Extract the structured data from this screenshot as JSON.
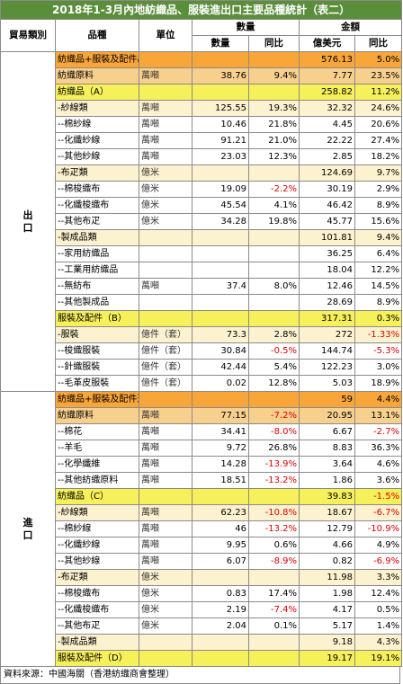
{
  "title": "2018年1-3月內地紡織品、服裝進出口主要品種統計（表二）",
  "header": {
    "trade_type": "貿易類別",
    "item": "品種",
    "unit": "單位",
    "quantity": "數量",
    "amount": "金額",
    "qty_value": "數量",
    "yoy": "同比",
    "value_usd": "億美元",
    "yoy2": "同比"
  },
  "export_label": "出口",
  "import_label": "進口",
  "export_rows": [
    {
      "name": "紡織品+服裝及配件出口（A+B）",
      "unit": "",
      "qty": "",
      "qty_yoy": "",
      "val": "576.13",
      "val_yoy": "5.0%",
      "style": "r-total"
    },
    {
      "name": "紡織原料",
      "unit": "萬噸",
      "qty": "38.76",
      "qty_yoy": "9.4%",
      "val": "7.77",
      "val_yoy": "23.5%",
      "style": "r-fiber"
    },
    {
      "name": "紡織品（A）",
      "unit": "",
      "qty": "",
      "qty_yoy": "",
      "val": "258.82",
      "val_yoy": "11.2%",
      "style": "r-text"
    },
    {
      "name": "-紗線類",
      "unit": "萬噸",
      "qty": "125.55",
      "qty_yoy": "19.3%",
      "val": "32.32",
      "val_yoy": "24.6%",
      "style": "r-sub"
    },
    {
      "name": "--棉紗線",
      "unit": "萬噸",
      "qty": "10.46",
      "qty_yoy": "21.8%",
      "val": "4.45",
      "val_yoy": "20.6%",
      "style": "r-none"
    },
    {
      "name": "--化纖紗線",
      "unit": "萬噸",
      "qty": "91.21",
      "qty_yoy": "21.0%",
      "val": "22.22",
      "val_yoy": "27.4%",
      "style": "r-none"
    },
    {
      "name": "--其他紗線",
      "unit": "萬噸",
      "qty": "23.03",
      "qty_yoy": "12.3%",
      "val": "2.85",
      "val_yoy": "18.2%",
      "style": "r-none"
    },
    {
      "name": "-布疋類",
      "unit": "億米",
      "qty": "",
      "qty_yoy": "",
      "val": "124.69",
      "val_yoy": "9.7%",
      "style": "r-sub"
    },
    {
      "name": "--棉梭織布",
      "unit": "億米",
      "qty": "19.09",
      "qty_yoy": "-2.2%",
      "val": "30.19",
      "val_yoy": "2.9%",
      "style": "r-none"
    },
    {
      "name": "--化纖梭織布",
      "unit": "億米",
      "qty": "45.54",
      "qty_yoy": "4.1%",
      "val": "46.42",
      "val_yoy": "8.9%",
      "style": "r-none"
    },
    {
      "name": "--其他布疋",
      "unit": "億米",
      "qty": "34.28",
      "qty_yoy": "19.8%",
      "val": "45.77",
      "val_yoy": "15.6%",
      "style": "r-none"
    },
    {
      "name": "-製成品類",
      "unit": "",
      "qty": "",
      "qty_yoy": "",
      "val": "101.81",
      "val_yoy": "9.4%",
      "style": "r-sub"
    },
    {
      "name": "--家用紡織品",
      "unit": "",
      "qty": "",
      "qty_yoy": "",
      "val": "36.25",
      "val_yoy": "6.4%",
      "style": "r-none"
    },
    {
      "name": "--工業用紡織品",
      "unit": "",
      "qty": "",
      "qty_yoy": "",
      "val": "18.04",
      "val_yoy": "12.2%",
      "style": "r-none"
    },
    {
      "name": "--無紡布",
      "unit": "萬噸",
      "qty": "37.4",
      "qty_yoy": "8.0%",
      "val": "12.46",
      "val_yoy": "14.5%",
      "style": "r-none"
    },
    {
      "name": "--其他製成品",
      "unit": "",
      "qty": "",
      "qty_yoy": "",
      "val": "28.69",
      "val_yoy": "8.9%",
      "style": "r-none"
    },
    {
      "name": "服裝及配件（B）",
      "unit": "",
      "qty": "",
      "qty_yoy": "",
      "val": "317.31",
      "val_yoy": "0.3%",
      "style": "r-text"
    },
    {
      "name": "-服裝",
      "unit": "億件（套）",
      "qty": "73.3",
      "qty_yoy": "2.8%",
      "val": "272",
      "val_yoy": "-1.33%",
      "style": "r-sub"
    },
    {
      "name": "--梭織服裝",
      "unit": "億件（套）",
      "qty": "30.84",
      "qty_yoy": "-0.5%",
      "val": "144.74",
      "val_yoy": "-5.3%",
      "style": "r-none"
    },
    {
      "name": "--針織服裝",
      "unit": "億件（套）",
      "qty": "42.44",
      "qty_yoy": "5.4%",
      "val": "122.23",
      "val_yoy": "3.0%",
      "style": "r-none"
    },
    {
      "name": "--毛革皮服裝",
      "unit": "億件（套）",
      "qty": "0.02",
      "qty_yoy": "12.8%",
      "val": "5.03",
      "val_yoy": "18.9%",
      "style": "r-none"
    }
  ],
  "import_rows": [
    {
      "name": "紡織品+服裝及配件進口（C+D）",
      "unit": "",
      "qty": "",
      "qty_yoy": "",
      "val": "59",
      "val_yoy": "4.4%",
      "style": "r-total"
    },
    {
      "name": "紡織原料",
      "unit": "萬噸",
      "qty": "77.15",
      "qty_yoy": "-7.2%",
      "val": "20.95",
      "val_yoy": "13.1%",
      "style": "r-fiber"
    },
    {
      "name": "--棉花",
      "unit": "萬噸",
      "qty": "34.41",
      "qty_yoy": "-8.0%",
      "val": "6.67",
      "val_yoy": "-2.7%",
      "style": "r-none"
    },
    {
      "name": "--羊毛",
      "unit": "萬噸",
      "qty": "9.72",
      "qty_yoy": "26.8%",
      "val": "8.83",
      "val_yoy": "36.3%",
      "style": "r-none"
    },
    {
      "name": "--化學纖維",
      "unit": "萬噸",
      "qty": "14.28",
      "qty_yoy": "-13.9%",
      "val": "3.64",
      "val_yoy": "4.6%",
      "style": "r-none"
    },
    {
      "name": "--其他紡織原料",
      "unit": "萬噸",
      "qty": "18.51",
      "qty_yoy": "-13.2%",
      "val": "1.86",
      "val_yoy": "3.6%",
      "style": "r-none"
    },
    {
      "name": "紡織品（C）",
      "unit": "",
      "qty": "",
      "qty_yoy": "",
      "val": "39.83",
      "val_yoy": "-1.5%",
      "style": "r-text"
    },
    {
      "name": "-紗線類",
      "unit": "萬噸",
      "qty": "62.23",
      "qty_yoy": "-10.8%",
      "val": "18.67",
      "val_yoy": "-6.7%",
      "style": "r-sub"
    },
    {
      "name": "--棉紗線",
      "unit": "萬噸",
      "qty": "46",
      "qty_yoy": "-13.2%",
      "val": "12.79",
      "val_yoy": "-10.9%",
      "style": "r-none"
    },
    {
      "name": "--化纖紗線",
      "unit": "萬噸",
      "qty": "9.95",
      "qty_yoy": "0.6%",
      "val": "4.66",
      "val_yoy": "4.9%",
      "style": "r-none"
    },
    {
      "name": "--其他紗線",
      "unit": "萬噸",
      "qty": "6.07",
      "qty_yoy": "-8.9%",
      "val": "0.82",
      "val_yoy": "-6.9%",
      "style": "r-none"
    },
    {
      "name": "-布疋類",
      "unit": "億米",
      "qty": "",
      "qty_yoy": "",
      "val": "11.98",
      "val_yoy": "3.3%",
      "style": "r-sub"
    },
    {
      "name": "--棉梭織布",
      "unit": "億米",
      "qty": "0.83",
      "qty_yoy": "17.4%",
      "val": "1.98",
      "val_yoy": "12.4%",
      "style": "r-none"
    },
    {
      "name": "--化纖梭織布",
      "unit": "億米",
      "qty": "2.19",
      "qty_yoy": "-7.4%",
      "val": "4.17",
      "val_yoy": "0.5%",
      "style": "r-none"
    },
    {
      "name": "--其他布疋",
      "unit": "億米",
      "qty": "2.04",
      "qty_yoy": "0.1%",
      "val": "5.17",
      "val_yoy": "1.4%",
      "style": "r-none"
    },
    {
      "name": "-製成品類",
      "unit": "",
      "qty": "",
      "qty_yoy": "",
      "val": "9.18",
      "val_yoy": "4.3%",
      "style": "r-sub"
    },
    {
      "name": "服裝及配件（D）",
      "unit": "",
      "qty": "",
      "qty_yoy": "",
      "val": "19.17",
      "val_yoy": "19.1%",
      "style": "r-text"
    }
  ],
  "source": "資料來源：中國海關（香港紡織商會整理）"
}
